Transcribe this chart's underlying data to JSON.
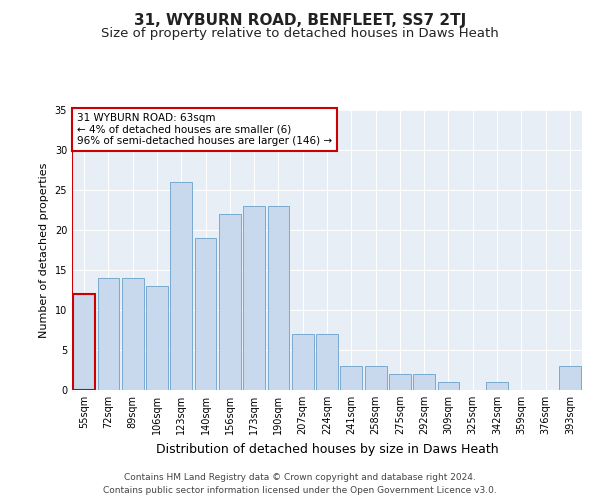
{
  "title": "31, WYBURN ROAD, BENFLEET, SS7 2TJ",
  "subtitle": "Size of property relative to detached houses in Daws Heath",
  "xlabel": "Distribution of detached houses by size in Daws Heath",
  "ylabel": "Number of detached properties",
  "categories": [
    "55sqm",
    "72sqm",
    "89sqm",
    "106sqm",
    "123sqm",
    "140sqm",
    "156sqm",
    "173sqm",
    "190sqm",
    "207sqm",
    "224sqm",
    "241sqm",
    "258sqm",
    "275sqm",
    "292sqm",
    "309sqm",
    "325sqm",
    "342sqm",
    "359sqm",
    "376sqm",
    "393sqm"
  ],
  "values": [
    12,
    14,
    14,
    13,
    26,
    19,
    22,
    23,
    23,
    7,
    7,
    3,
    3,
    2,
    2,
    1,
    0,
    1,
    0,
    0,
    3
  ],
  "bar_color": "#c8d9ee",
  "bar_edge_color": "#7aaad0",
  "highlight_bar_index": 0,
  "highlight_bar_edge_color": "#cc0000",
  "red_line_x": -0.5,
  "annotation_text": "31 WYBURN ROAD: 63sqm\n← 4% of detached houses are smaller (6)\n96% of semi-detached houses are larger (146) →",
  "annotation_box_color": "#ffffff",
  "annotation_box_edge_color": "#cc0000",
  "ylim": [
    0,
    35
  ],
  "yticks": [
    0,
    5,
    10,
    15,
    20,
    25,
    30,
    35
  ],
  "background_color": "#e8eef5",
  "footer_line1": "Contains HM Land Registry data © Crown copyright and database right 2024.",
  "footer_line2": "Contains public sector information licensed under the Open Government Licence v3.0.",
  "title_fontsize": 11,
  "subtitle_fontsize": 9.5,
  "xlabel_fontsize": 9,
  "ylabel_fontsize": 8,
  "tick_fontsize": 7,
  "footer_fontsize": 6.5,
  "annotation_fontsize": 7.5
}
